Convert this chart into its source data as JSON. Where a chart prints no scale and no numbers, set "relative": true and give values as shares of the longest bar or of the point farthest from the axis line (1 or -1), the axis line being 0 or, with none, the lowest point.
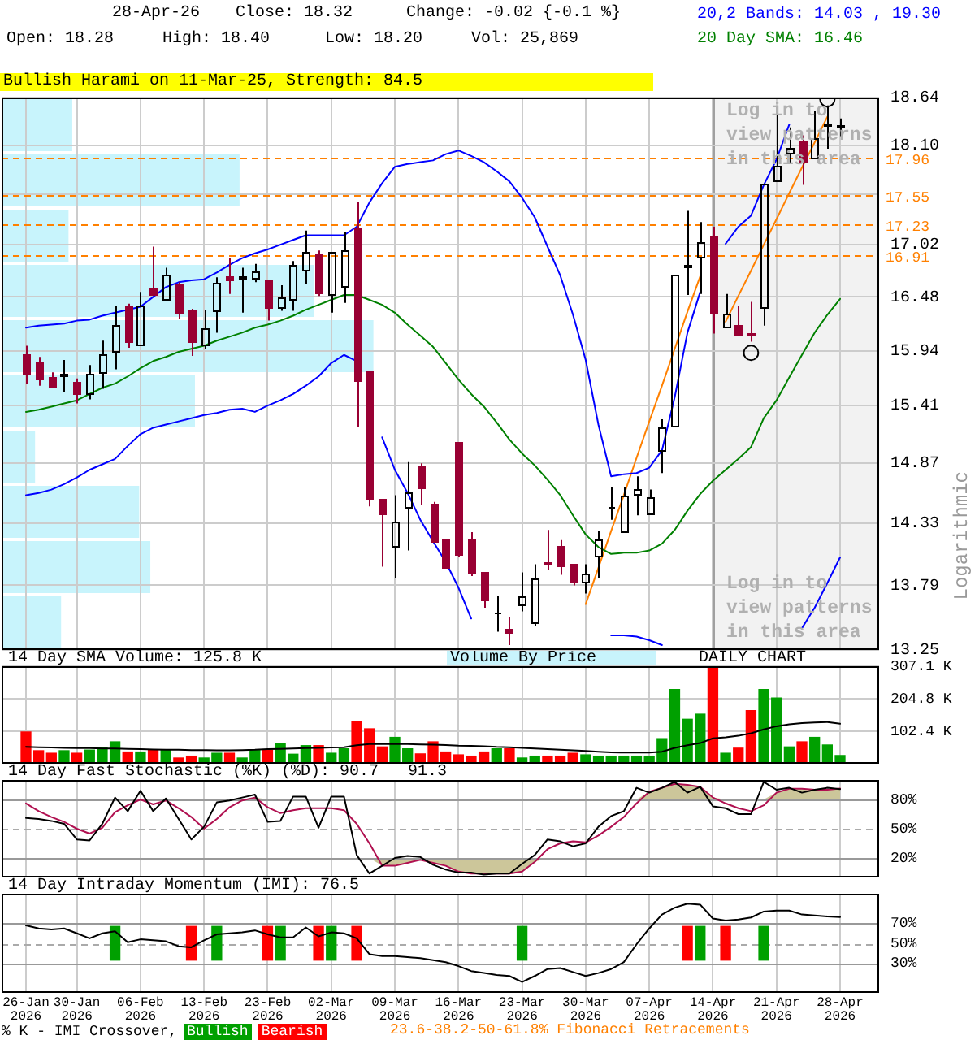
{
  "chart_data": [
    {
      "type": "candlestick",
      "categories": [
        "26-Jan 2026",
        null,
        null,
        null,
        "30-Jan 2026",
        null,
        null,
        null,
        null,
        "06-Feb 2026",
        null,
        null,
        null,
        null,
        "13-Feb 2026",
        null,
        null,
        null,
        null,
        "23-Feb 2026",
        null,
        null,
        null,
        null,
        "02-Mar 2026",
        null,
        null,
        null,
        null,
        "09-Mar 2026",
        null,
        null,
        null,
        null,
        "16-Mar 2026",
        null,
        null,
        null,
        null,
        "23-Mar 2026",
        null,
        null,
        null,
        null,
        "30-Mar 2026",
        null,
        null,
        null,
        null,
        "07-Apr 2026",
        null,
        null,
        null,
        null,
        "14-Apr 2026",
        null,
        null,
        null,
        null,
        "21-Apr 2026",
        null,
        null,
        null,
        null,
        "28-Apr 2026"
      ],
      "ohlc": [
        [
          15.9,
          15.99,
          15.62,
          15.69
        ],
        [
          15.83,
          15.88,
          15.6,
          15.66
        ],
        [
          15.69,
          15.73,
          15.57,
          15.58
        ],
        [
          15.69,
          15.85,
          15.54,
          15.72
        ],
        [
          15.63,
          15.67,
          15.43,
          15.51
        ],
        [
          15.51,
          15.8,
          15.47,
          15.72
        ],
        [
          15.72,
          16.04,
          15.57,
          15.91
        ],
        [
          15.92,
          16.39,
          15.76,
          16.2
        ],
        [
          16.39,
          16.41,
          15.97,
          16.02
        ],
        [
          16.0,
          16.53,
          15.98,
          16.4
        ],
        [
          16.58,
          17.0,
          16.48,
          16.49
        ],
        [
          16.44,
          16.78,
          16.43,
          16.71
        ],
        [
          16.61,
          16.63,
          16.26,
          16.31
        ],
        [
          16.35,
          16.36,
          15.89,
          16.02
        ],
        [
          15.99,
          16.35,
          15.96,
          16.17
        ],
        [
          16.33,
          16.68,
          16.12,
          16.63
        ],
        [
          16.69,
          16.88,
          16.51,
          16.64
        ],
        [
          16.66,
          16.78,
          16.32,
          16.69
        ],
        [
          16.65,
          16.82,
          16.63,
          16.74
        ],
        [
          16.65,
          16.66,
          16.24,
          16.36
        ],
        [
          16.36,
          16.6,
          16.34,
          16.48
        ],
        [
          16.44,
          16.85,
          16.34,
          16.81
        ],
        [
          16.74,
          17.17,
          16.61,
          16.95
        ],
        [
          16.92,
          16.96,
          16.49,
          16.5
        ],
        [
          16.49,
          16.95,
          16.32,
          16.94
        ],
        [
          16.57,
          17.15,
          16.42,
          16.96
        ],
        [
          17.21,
          17.48,
          15.21,
          15.65
        ],
        [
          15.74,
          15.75,
          14.48,
          14.53
        ],
        [
          14.54,
          14.55,
          13.95,
          14.4
        ],
        [
          14.11,
          14.58,
          13.85,
          14.34
        ],
        [
          14.45,
          14.88,
          14.09,
          14.6
        ],
        [
          14.84,
          14.87,
          14.49,
          14.64
        ],
        [
          14.51,
          14.52,
          14.15,
          14.16
        ],
        [
          14.18,
          14.19,
          13.92,
          13.93
        ],
        [
          15.06,
          15.07,
          14.03,
          14.04
        ],
        [
          14.18,
          14.25,
          13.87,
          13.88
        ],
        [
          13.9,
          13.91,
          13.6,
          13.65
        ],
        [
          13.55,
          13.7,
          13.4,
          13.56
        ],
        [
          13.43,
          13.52,
          13.29,
          13.39
        ],
        [
          13.61,
          13.9,
          13.57,
          13.69
        ],
        [
          13.46,
          13.97,
          13.45,
          13.85
        ],
        [
          13.99,
          14.27,
          13.92,
          13.96
        ],
        [
          14.13,
          14.18,
          13.88,
          13.94
        ],
        [
          13.97,
          13.98,
          13.79,
          13.8
        ],
        [
          13.8,
          13.97,
          13.72,
          13.89
        ],
        [
          14.02,
          14.26,
          13.85,
          14.18
        ],
        [
          14.46,
          14.65,
          14.36,
          14.47
        ],
        [
          14.24,
          14.65,
          14.23,
          14.57
        ],
        [
          14.57,
          14.75,
          14.4,
          14.63
        ],
        [
          14.4,
          14.63,
          14.39,
          14.56
        ],
        [
          14.99,
          15.28,
          14.78,
          15.21
        ],
        [
          15.21,
          16.71,
          15.21,
          16.71
        ],
        [
          16.78,
          17.38,
          16.5,
          16.81
        ],
        [
          16.88,
          17.26,
          16.51,
          17.05
        ],
        [
          17.12,
          17.21,
          16.11,
          16.31
        ],
        [
          16.17,
          16.51,
          16.15,
          16.31
        ],
        [
          16.2,
          16.39,
          16.08,
          16.09
        ],
        [
          16.11,
          16.43,
          16.03,
          16.08
        ],
        [
          16.36,
          17.67,
          16.19,
          17.67
        ],
        [
          17.7,
          18.44,
          17.69,
          17.87
        ],
        [
          18.0,
          18.3,
          17.89,
          18.07
        ],
        [
          18.14,
          18.21,
          17.66,
          17.9
        ],
        [
          17.95,
          18.49,
          17.94,
          18.18
        ],
        [
          18.3,
          18.55,
          18.06,
          18.34
        ],
        [
          18.28,
          18.4,
          18.2,
          18.32
        ]
      ],
      "colors": [
        "#990033",
        "#990033",
        "#990033",
        "#000000",
        "#990033",
        "#000000",
        "#000000",
        "#000000",
        "#990033",
        "#000000",
        "#990033",
        "#000000",
        "#990033",
        "#990033",
        "#000000",
        "#000000",
        "#990033",
        "#000000",
        "#000000",
        "#990033",
        "#000000",
        "#000000",
        "#000000",
        "#990033",
        "#000000",
        "#000000",
        "#990033",
        "#990033",
        "#990033",
        "#000000",
        "#000000",
        "#990033",
        "#990033",
        "#990033",
        "#990033",
        "#990033",
        "#990033",
        "#000000",
        "#990033",
        "#000000",
        "#000000",
        "#990033",
        "#990033",
        "#990033",
        "#000000",
        "#000000",
        "#000000",
        "#000000",
        "#000000",
        "#000000",
        "#000000",
        "#000000",
        "#000000",
        "#000000",
        "#990033",
        "#000000",
        "#990033",
        "#990033",
        "#000000",
        "#000000",
        "#000000",
        "#990033",
        "#000000",
        "#000000",
        "#000000"
      ],
      "series": [
        {
          "name": "20,2 Bands: 14.03 , 19.30",
          "type": "line",
          "color": "#0000ff",
          "values": [
            16.17,
            16.19,
            16.2,
            16.21,
            16.24,
            16.25,
            16.29,
            16.32,
            16.35,
            16.38,
            16.48,
            16.58,
            16.63,
            16.65,
            16.66,
            16.73,
            16.81,
            16.88,
            16.93,
            16.97,
            17.02,
            17.07,
            17.12,
            17.12,
            17.12,
            17.12,
            17.21,
            17.47,
            17.68,
            17.86,
            17.89,
            17.91,
            17.93,
            18.0,
            18.04,
            17.98,
            17.91,
            17.81,
            17.7,
            17.52,
            17.31,
            17.0,
            16.7,
            16.3,
            15.85,
            15.23,
            14.75,
            14.77,
            14.78,
            14.83,
            14.99,
            15.49,
            16.12,
            16.53,
            null,
            17.03,
            17.21,
            17.33,
            17.66,
            17.94,
            18.33,
            null,
            null,
            null,
            null
          ]
        },
        {
          "type": "line",
          "color": "#0000ff",
          "values": [
            14.58,
            14.6,
            14.63,
            14.68,
            14.74,
            14.81,
            14.86,
            14.91,
            15.03,
            15.14,
            15.2,
            15.23,
            15.26,
            15.29,
            15.32,
            15.34,
            15.37,
            15.38,
            15.35,
            15.41,
            15.46,
            15.52,
            15.6,
            15.69,
            15.82,
            15.9,
            15.84,
            null,
            15.11,
            14.81,
            14.6,
            14.36,
            14.17,
            13.99,
            13.77,
            13.51,
            null,
            null,
            null,
            null,
            null,
            null,
            null,
            null,
            null,
            null,
            13.37,
            13.37,
            13.36,
            13.33,
            13.29,
            null,
            null,
            null,
            null,
            null,
            null,
            null,
            null,
            null,
            null,
            13.43,
            13.6,
            13.81,
            14.03
          ]
        },
        {
          "name": "20 Day SMA: 16.46",
          "type": "line",
          "color": "#008000",
          "values": [
            15.35,
            15.37,
            15.4,
            15.43,
            15.46,
            15.52,
            15.58,
            15.62,
            15.69,
            15.77,
            15.84,
            15.88,
            15.93,
            15.96,
            15.99,
            16.04,
            16.08,
            16.12,
            16.17,
            16.2,
            16.24,
            16.29,
            16.35,
            16.4,
            16.45,
            16.5,
            16.5,
            16.45,
            16.4,
            16.32,
            16.2,
            16.09,
            15.98,
            15.82,
            15.66,
            15.52,
            15.4,
            15.25,
            15.09,
            14.96,
            14.85,
            14.72,
            14.58,
            14.4,
            14.23,
            14.12,
            14.06,
            14.07,
            14.07,
            14.09,
            14.15,
            14.27,
            14.44,
            14.59,
            14.71,
            14.81,
            14.91,
            15.02,
            15.29,
            15.46,
            15.68,
            15.9,
            16.12,
            16.3,
            16.46
          ]
        },
        {
          "type": "line",
          "color": "#ff8000",
          "values": [
            null,
            null,
            null,
            null,
            null,
            null,
            null,
            null,
            null,
            null,
            null,
            null,
            null,
            null,
            null,
            null,
            null,
            null,
            null,
            null,
            null,
            null,
            null,
            null,
            null,
            null,
            null,
            null,
            null,
            null,
            null,
            null,
            null,
            null,
            null,
            null,
            null,
            null,
            null,
            null,
            null,
            null,
            null,
            null,
            13.63,
            13.94,
            14.26,
            14.58,
            14.92,
            15.26,
            15.6,
            15.96,
            16.33,
            16.69,
            null,
            null,
            null,
            null,
            null,
            null,
            null,
            null,
            null,
            null,
            null
          ]
        },
        {
          "type": "line",
          "color": "#ff8000",
          "values": [
            null,
            null,
            null,
            null,
            null,
            null,
            null,
            null,
            null,
            null,
            null,
            null,
            null,
            null,
            null,
            null,
            null,
            null,
            null,
            null,
            null,
            null,
            null,
            null,
            null,
            null,
            null,
            null,
            null,
            null,
            null,
            null,
            null,
            null,
            null,
            null,
            null,
            null,
            null,
            null,
            null,
            null,
            null,
            null,
            null,
            null,
            null,
            null,
            null,
            null,
            null,
            null,
            null,
            null,
            null,
            16.23,
            16.49,
            16.75,
            17.02,
            17.29,
            17.57,
            17.85,
            18.13,
            18.42,
            null
          ]
        },
        {
          "type": "scatter",
          "marker": "circle",
          "color": "#000000",
          "values": [
            null,
            null,
            null,
            null,
            null,
            null,
            null,
            null,
            null,
            null,
            null,
            null,
            null,
            null,
            null,
            null,
            null,
            null,
            null,
            null,
            null,
            null,
            null,
            null,
            null,
            null,
            null,
            null,
            null,
            null,
            null,
            null,
            null,
            null,
            null,
            null,
            null,
            null,
            null,
            null,
            null,
            null,
            null,
            null,
            null,
            null,
            null,
            null,
            null,
            null,
            null,
            null,
            null,
            null,
            null,
            null,
            null,
            15.92,
            null,
            null,
            null,
            null,
            null,
            18.62,
            null
          ]
        }
      ],
      "ylim": [
        13.25,
        18.64
      ],
      "yticks": [
        13.25,
        13.79,
        14.33,
        14.87,
        15.41,
        15.94,
        16.48,
        17.02,
        {
          "value": 17.56,
          "label": null
        },
        {
          "value": 18.1,
          "label": "18.10"
        },
        18.64
      ],
      "log": true,
      "grid": true,
      "tick_labels": "y",
      "ylabel": "Logarithmic",
      "legend": "top right",
      "ref_lines": [
        {
          "axis": "y",
          "value": 17.96,
          "label": "17.96",
          "color": "#ff8000",
          "line_style": "dashed"
        },
        {
          "axis": "y",
          "value": 17.55,
          "label": "17.55",
          "color": "#ff8000",
          "line_style": "dashed"
        },
        {
          "axis": "y",
          "value": 17.23,
          "label": "17.23",
          "color": "#ff8000",
          "line_style": "dashed"
        },
        {
          "axis": "y",
          "value": 16.91,
          "label": "16.91",
          "color": "#ff8000",
          "line_style": "dashed"
        }
      ],
      "bands": [
        {
          "axis": "x",
          "from": "14-Apr 2026",
          "to": "28-Apr 2026",
          "color": "#f2f2f2"
        }
      ],
      "annotations": [
        "28-Apr-26",
        "Close: 18.32",
        "Change: -0.02 {-0.1 %}",
        "Open: 18.28",
        "High: 18.40",
        "Low: 18.20",
        "Vol: 25,869",
        "Bullish Harami on 11-Mar-25, Strength: 84.5",
        {
          "text": "Log in to view patterns in this area",
          "y": 18.21
        },
        "Log in to view patterns in this area",
        "DAILY CHART",
        "23.6-38.2-50-61.8% Fibonacci Retracements"
      ]
    },
    {
      "type": "bar",
      "orientation": "horizontal",
      "categories": [
        null,
        null,
        null,
        null,
        null,
        null,
        null,
        null,
        null,
        null
      ],
      "series": [
        {
          "name": "Volume By Price",
          "color": "#c8f4fc",
          "values": [
            0.19,
            0.64,
            0.18,
            0.84,
            1,
            0.52,
            0.09,
            0.37,
            0.4,
            0.16
          ]
        }
      ],
      "relative": true,
      "legend": "bottom"
    },
    {
      "type": "bar",
      "categories": [
        "26-Jan 2026",
        null,
        null,
        null,
        "30-Jan 2026",
        null,
        null,
        null,
        null,
        "06-Feb 2026",
        null,
        null,
        null,
        null,
        "13-Feb 2026",
        null,
        null,
        null,
        null,
        "23-Feb 2026",
        null,
        null,
        null,
        null,
        "02-Mar 2026",
        null,
        null,
        null,
        null,
        "09-Mar 2026",
        null,
        null,
        null,
        null,
        "16-Mar 2026",
        null,
        null,
        null,
        null,
        "23-Mar 2026",
        null,
        null,
        null,
        null,
        "30-Mar 2026",
        null,
        null,
        null,
        null,
        "07-Apr 2026",
        null,
        null,
        null,
        null,
        "14-Apr 2026",
        null,
        null,
        null,
        null,
        "21-Apr 2026",
        null,
        null,
        null,
        null,
        "28-Apr 2026"
      ],
      "series": [
        {
          "values": [
            100,
            41,
            33,
            41,
            33,
            43,
            51,
            69,
            37,
            37,
            43,
            43,
            18,
            24,
            18,
            33,
            33,
            18,
            43,
            43,
            63,
            30,
            57,
            57,
            33,
            47,
            132,
            110,
            53,
            83,
            47,
            31,
            69,
            37,
            28,
            24,
            37,
            47,
            47,
            18,
            24,
            24,
            24,
            33,
            28,
            24,
            24,
            24,
            24,
            24,
            79,
            234,
            140,
            156,
            307.1,
            33,
            49,
            167,
            234,
            207,
            53,
            69,
            83,
            59,
            25.9
          ],
          "colors": [
            "#ff0000",
            "#ff0000",
            "#ff0000",
            "#00a000",
            "#ff0000",
            "#00a000",
            "#00a000",
            "#00a000",
            "#ff0000",
            "#00a000",
            "#ff0000",
            "#00a000",
            "#ff0000",
            "#ff0000",
            "#00a000",
            "#00a000",
            "#ff0000",
            "#00a000",
            "#00a000",
            "#ff0000",
            "#00a000",
            "#00a000",
            "#00a000",
            "#ff0000",
            "#00a000",
            "#00a000",
            "#ff0000",
            "#ff0000",
            "#ff0000",
            "#00a000",
            "#00a000",
            "#ff0000",
            "#ff0000",
            "#ff0000",
            "#ff0000",
            "#ff0000",
            "#ff0000",
            "#00a000",
            "#ff0000",
            "#00a000",
            "#00a000",
            "#ff0000",
            "#ff0000",
            "#ff0000",
            "#00a000",
            "#00a000",
            "#00a000",
            "#00a000",
            "#00a000",
            "#00a000",
            "#00a000",
            "#00a000",
            "#00a000",
            "#00a000",
            "#ff0000",
            "#00a000",
            "#ff0000",
            "#ff0000",
            "#00a000",
            "#00a000",
            "#00a000",
            "#ff0000",
            "#00a000",
            "#00a000",
            "#00a000"
          ]
        },
        {
          "name": "14 Day SMA Volume: 125.8 K",
          "type": "line",
          "color": "#000000",
          "values": [
            53,
            52,
            51,
            50,
            49,
            49,
            48,
            48,
            47,
            46,
            45,
            44,
            44,
            43,
            43,
            42,
            42,
            43,
            44,
            46,
            47,
            48,
            49,
            50,
            51,
            52,
            58,
            62,
            62,
            63,
            62,
            61,
            60,
            59,
            57,
            56,
            55,
            53,
            52,
            50,
            48,
            46,
            44,
            42,
            40,
            38,
            36,
            35,
            35,
            35,
            38,
            50,
            58,
            65,
            80,
            83,
            88,
            96,
            108,
            118,
            124,
            128,
            130,
            131,
            125.8
          ]
        }
      ],
      "ylim": [
        0,
        307.1
      ],
      "yticks": [
        {
          "value": 102.4,
          "label": "102.4 K"
        },
        {
          "value": 204.8,
          "label": "204.8 K"
        },
        {
          "value": 307.1,
          "label": "307.1 K"
        }
      ],
      "grid": true,
      "legend": "top left",
      "tick_labels": "y"
    },
    {
      "type": "line",
      "title": "14 Day Fast Stochastic (%K) (%D): 90.7   91.3",
      "categories": [
        "26-Jan 2026",
        null,
        null,
        null,
        "30-Jan 2026",
        null,
        null,
        null,
        null,
        "06-Feb 2026",
        null,
        null,
        null,
        null,
        "13-Feb 2026",
        null,
        null,
        null,
        null,
        "23-Feb 2026",
        null,
        null,
        null,
        null,
        "02-Mar 2026",
        null,
        null,
        null,
        null,
        "09-Mar 2026",
        null,
        null,
        null,
        null,
        "16-Mar 2026",
        null,
        null,
        null,
        null,
        "23-Mar 2026",
        null,
        null,
        null,
        null,
        "30-Mar 2026",
        null,
        null,
        null,
        null,
        "07-Apr 2026",
        null,
        null,
        null,
        null,
        "14-Apr 2026",
        null,
        null,
        null,
        null,
        "21-Apr 2026",
        null,
        null,
        null,
        null,
        "28-Apr 2026"
      ],
      "series": [
        {
          "color": "#ccc69a",
          "values": [
            null,
            null,
            null,
            null,
            null,
            null,
            null,
            null,
            null,
            null,
            null,
            null,
            null,
            null,
            null,
            null,
            null,
            null,
            null,
            null,
            null,
            null,
            null,
            null,
            null,
            null,
            null,
            null,
            null,
            null,
            null,
            null,
            null,
            null,
            null,
            null,
            null,
            null,
            null,
            null,
            null,
            null,
            null,
            null,
            null,
            null,
            null,
            null,
            null,
            null,
            null,
            null,
            null,
            null,
            null,
            null,
            null,
            null,
            null,
            null,
            null,
            null,
            null,
            null,
            null
          ],
          "lower": [
            null,
            null,
            null,
            null,
            null,
            null,
            null,
            null,
            null,
            null,
            null,
            null,
            null,
            null,
            null,
            null,
            null,
            80,
            80,
            80,
            null,
            null,
            null,
            null,
            null,
            null,
            null,
            20,
            12,
            12,
            15,
            18,
            15,
            12,
            6,
            4,
            4,
            4,
            4,
            6,
            16,
            20,
            null,
            null,
            null,
            null,
            null,
            null,
            80,
            80,
            80,
            80,
            80,
            80,
            80,
            80,
            null,
            null,
            80,
            80,
            80,
            80,
            80,
            80,
            80
          ],
          "upper": [
            null,
            null,
            null,
            null,
            null,
            null,
            null,
            null,
            null,
            null,
            null,
            null,
            null,
            null,
            null,
            null,
            null,
            80,
            82,
            80,
            null,
            null,
            null,
            null,
            null,
            null,
            null,
            20,
            20,
            20,
            20,
            20,
            20,
            20,
            20,
            20,
            20,
            20,
            20,
            20,
            20,
            20,
            null,
            null,
            null,
            null,
            null,
            null,
            80,
            88,
            92,
            96,
            95,
            93,
            82,
            80,
            null,
            null,
            80,
            87,
            91,
            91,
            90,
            90,
            91.3
          ]
        },
        {
          "color": "#000000",
          "values": [
            61,
            60,
            58,
            55,
            39,
            38,
            55,
            82,
            68,
            89,
            68,
            81,
            60,
            39,
            52,
            77,
            79,
            82,
            85,
            57,
            58,
            83,
            83,
            51,
            83,
            83,
            23,
            4,
            12,
            20,
            22,
            21,
            13,
            8,
            5,
            5,
            3,
            4,
            4,
            14,
            23,
            39,
            37,
            32,
            35,
            52,
            63,
            68,
            92,
            87,
            92,
            98,
            87,
            93,
            73,
            71,
            65,
            65,
            98,
            90,
            92,
            87,
            90,
            92,
            90.7
          ]
        },
        {
          "color": "#b01050",
          "values": [
            76,
            68,
            62,
            57,
            50,
            45,
            51,
            67,
            74,
            80,
            75,
            79,
            71,
            62,
            50,
            60,
            72,
            79,
            82,
            72,
            66,
            69,
            71,
            71,
            71,
            69,
            55,
            35,
            12,
            12,
            15,
            18,
            15,
            12,
            6,
            4,
            4,
            4,
            4,
            6,
            16,
            29,
            35,
            37,
            36,
            43,
            52,
            62,
            76,
            88,
            92,
            96,
            95,
            93,
            82,
            76,
            71,
            68,
            74,
            87,
            91,
            91,
            90,
            90,
            91.3
          ]
        }
      ],
      "ylim": [
        0,
        100
      ],
      "yticks": [
        {
          "value": 20,
          "label": "20%"
        },
        {
          "value": 50,
          "label": "50%"
        },
        {
          "value": 80,
          "label": "80%"
        }
      ],
      "grid": "x",
      "tick_labels": "y",
      "ref_lines": [
        {
          "axis": "y",
          "value": 80,
          "color": "#999999"
        },
        {
          "axis": "y",
          "value": 50,
          "color": "#aaaaaa",
          "line_style": "dashed"
        },
        {
          "axis": "y",
          "value": 20,
          "color": "#999999"
        }
      ]
    },
    {
      "type": "line",
      "title": "14 Day Intraday Momentum (IMI): 76.5",
      "categories": [
        "26-Jan 2026",
        null,
        null,
        null,
        "30-Jan 2026",
        null,
        null,
        null,
        null,
        "06-Feb 2026",
        null,
        null,
        null,
        null,
        "13-Feb 2026",
        null,
        null,
        null,
        null,
        "23-Feb 2026",
        null,
        null,
        null,
        null,
        "02-Mar 2026",
        null,
        null,
        null,
        null,
        "09-Mar 2026",
        null,
        null,
        null,
        null,
        "16-Mar 2026",
        null,
        null,
        null,
        null,
        "23-Mar 2026",
        null,
        null,
        null,
        null,
        "30-Mar 2026",
        null,
        null,
        null,
        null,
        "07-Apr 2026",
        null,
        null,
        null,
        null,
        "14-Apr 2026",
        null,
        null,
        null,
        null,
        "21-Apr 2026",
        null,
        null,
        null,
        null,
        "28-Apr 2026"
      ],
      "series": [
        {
          "color": "#000000",
          "values": [
            68,
            65,
            64,
            65,
            60,
            55,
            60,
            62,
            51,
            54,
            53,
            52,
            47,
            46,
            53,
            59,
            60,
            61,
            63,
            59,
            56,
            56,
            66,
            57,
            61,
            60,
            55,
            39,
            37,
            37,
            36,
            35,
            33,
            31,
            27,
            22,
            20,
            18,
            17,
            11,
            17,
            24,
            25,
            21,
            17,
            20,
            24,
            31,
            49,
            65,
            79,
            86,
            90,
            89,
            75,
            73,
            74,
            76,
            82,
            83,
            83,
            79,
            78,
            77,
            76.5
          ]
        },
        {
          "name": "Bullish",
          "type": "bar",
          "color": "#00a000",
          "values": [
            null,
            null,
            null,
            null,
            null,
            null,
            null,
            34,
            null,
            null,
            null,
            null,
            null,
            null,
            null,
            34,
            null,
            null,
            null,
            null,
            34,
            null,
            null,
            null,
            34,
            null,
            null,
            null,
            null,
            null,
            null,
            null,
            null,
            null,
            null,
            null,
            null,
            null,
            null,
            34,
            null,
            null,
            null,
            null,
            null,
            null,
            null,
            null,
            null,
            null,
            null,
            null,
            null,
            34,
            null,
            null,
            null,
            null,
            34,
            null,
            null,
            null,
            null,
            null,
            null
          ],
          "base": [
            null,
            null,
            null,
            null,
            null,
            null,
            null,
            33,
            null,
            null,
            null,
            null,
            null,
            null,
            null,
            33,
            null,
            null,
            null,
            null,
            33,
            null,
            null,
            null,
            33,
            null,
            null,
            null,
            null,
            null,
            null,
            null,
            null,
            null,
            null,
            null,
            null,
            null,
            null,
            33,
            null,
            null,
            null,
            null,
            null,
            null,
            null,
            null,
            null,
            null,
            null,
            null,
            null,
            33,
            null,
            null,
            null,
            null,
            33,
            null,
            null,
            null,
            null,
            null,
            null
          ]
        },
        {
          "name": "Bearish",
          "type": "bar",
          "color": "#ff0000",
          "values": [
            null,
            null,
            null,
            null,
            null,
            null,
            null,
            null,
            null,
            null,
            null,
            null,
            null,
            34,
            null,
            null,
            null,
            null,
            null,
            34,
            null,
            null,
            null,
            34,
            null,
            null,
            34,
            null,
            null,
            null,
            null,
            null,
            null,
            null,
            null,
            null,
            null,
            null,
            null,
            null,
            null,
            null,
            null,
            null,
            null,
            null,
            null,
            null,
            null,
            null,
            null,
            null,
            34,
            null,
            null,
            34,
            null,
            null,
            null,
            null,
            null,
            null,
            null,
            null,
            null
          ],
          "base": [
            null,
            null,
            null,
            null,
            null,
            null,
            null,
            null,
            null,
            null,
            null,
            null,
            null,
            33,
            null,
            null,
            null,
            null,
            null,
            33,
            null,
            null,
            null,
            33,
            null,
            null,
            33,
            null,
            null,
            null,
            null,
            null,
            null,
            null,
            null,
            null,
            null,
            null,
            null,
            null,
            null,
            null,
            null,
            null,
            null,
            null,
            null,
            null,
            null,
            null,
            null,
            null,
            33,
            null,
            null,
            33,
            null,
            null,
            null,
            null,
            null,
            null,
            null,
            null,
            null
          ]
        }
      ],
      "ylim": [
        0,
        100
      ],
      "yticks": [
        {
          "value": 30,
          "label": "30%"
        },
        {
          "value": 50,
          "label": "50%"
        },
        {
          "value": 70,
          "label": "70%"
        }
      ],
      "grid": "x",
      "legend": "bottom",
      "legend_title": "% K - IMI Crossover,",
      "ref_lines": [
        {
          "axis": "y",
          "value": 70,
          "color": "#999999"
        },
        {
          "axis": "y",
          "value": 50,
          "color": "#aaaaaa",
          "line_style": "dashed"
        },
        {
          "axis": "y",
          "value": 30,
          "color": "#999999"
        }
      ]
    }
  ]
}
